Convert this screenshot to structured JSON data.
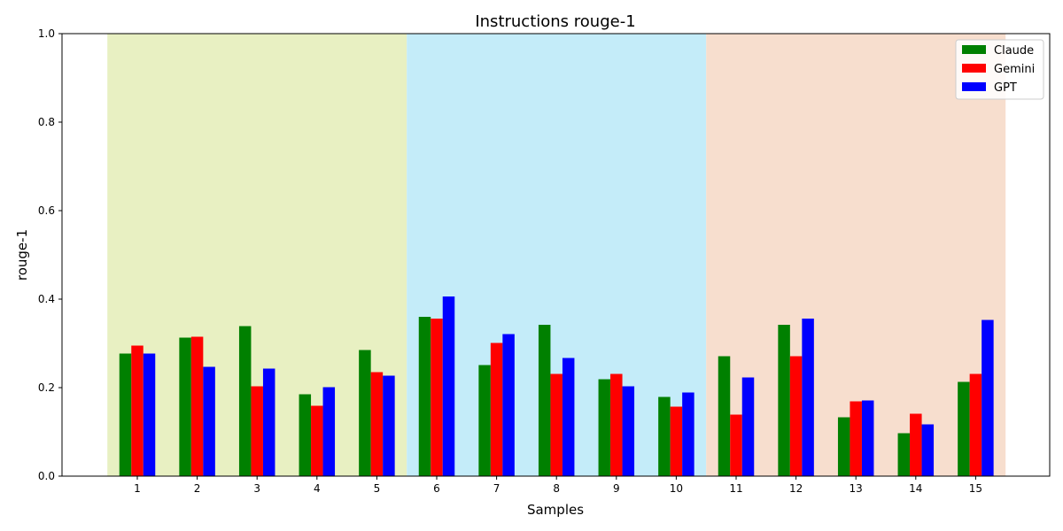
{
  "chart_data": {
    "type": "bar",
    "title": "Instructions rouge-1",
    "xlabel": "Samples",
    "ylabel": "rouge-1",
    "ylim": [
      0,
      1
    ],
    "yticks": [
      "0.0",
      "0.2",
      "0.4",
      "0.6",
      "0.8",
      "1.0"
    ],
    "categories": [
      "1",
      "2",
      "3",
      "4",
      "5",
      "6",
      "7",
      "8",
      "9",
      "10",
      "11",
      "12",
      "13",
      "14",
      "15"
    ],
    "series": [
      {
        "name": "Claude",
        "color": "#008000",
        "values": [
          0.277,
          0.313,
          0.339,
          0.185,
          0.285,
          0.36,
          0.251,
          0.342,
          0.219,
          0.179,
          0.271,
          0.342,
          0.133,
          0.097,
          0.213
        ]
      },
      {
        "name": "Gemini",
        "color": "#ff0000",
        "values": [
          0.295,
          0.315,
          0.203,
          0.159,
          0.235,
          0.356,
          0.301,
          0.231,
          0.231,
          0.157,
          0.139,
          0.271,
          0.169,
          0.141,
          0.231
        ]
      },
      {
        "name": "GPT",
        "color": "#0000ff",
        "values": [
          0.277,
          0.247,
          0.243,
          0.201,
          0.227,
          0.406,
          0.321,
          0.267,
          0.203,
          0.189,
          0.223,
          0.356,
          0.171,
          0.117,
          0.353
        ]
      }
    ],
    "bands": [
      {
        "from": 1,
        "to": 5,
        "color": "#e8f0c2"
      },
      {
        "from": 6,
        "to": 10,
        "color": "#c4ecf9"
      },
      {
        "from": 11,
        "to": 15,
        "color": "#f7dece"
      }
    ],
    "legend": {
      "placement": "top-right"
    },
    "grid": false
  }
}
